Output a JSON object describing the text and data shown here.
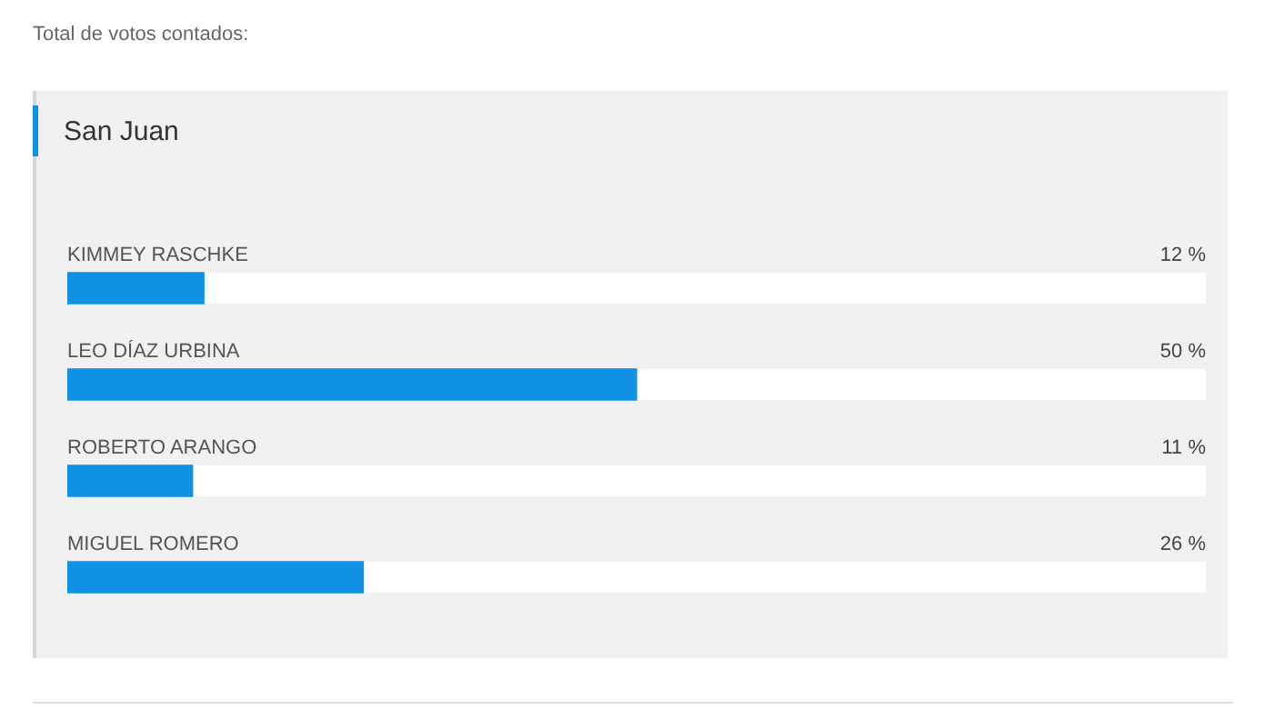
{
  "chart_data": {
    "type": "bar",
    "orientation": "horizontal",
    "title": "Total de votos contados:",
    "subtitle": "San Juan",
    "categories": [
      "KIMMEY RASCHKE",
      "LEO DÍAZ URBINA",
      "ROBERTO ARANGO",
      "MIGUEL ROMERO"
    ],
    "values": [
      12,
      50,
      11,
      26
    ],
    "value_labels": [
      "12 %",
      "50 %",
      "11 %",
      "26 %"
    ],
    "color": "#1191e3",
    "xlim": [
      0,
      100
    ],
    "tick_labels": "y"
  }
}
